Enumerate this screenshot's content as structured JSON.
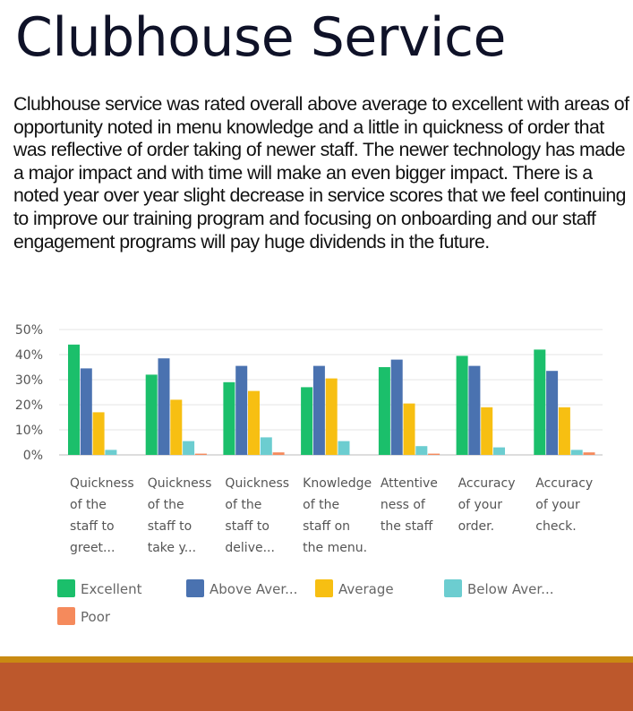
{
  "slide": {
    "title": "Clubhouse Service",
    "body": "Clubhouse service was rated overall above average to excellent with areas of opportunity noted in menu knowledge and a little in quickness of order that was reflective of order taking of newer staff.  The newer technology has made a major impact and with time will make an even bigger impact.  There is a noted year over year slight decrease in service scores that we feel continuing to improve our training program and focusing on onboarding and our staff engagement programs will pay huge dividends in the future."
  },
  "chart_data": {
    "type": "bar",
    "title": "",
    "xlabel": "",
    "ylabel": "",
    "ylim": [
      0,
      50
    ],
    "y_ticks": [
      "0%",
      "10%",
      "20%",
      "30%",
      "40%",
      "50%"
    ],
    "categories": [
      [
        "Quickness",
        "of the",
        "staff to",
        "greet..."
      ],
      [
        "Quickness",
        "of the",
        "staff to",
        "take y..."
      ],
      [
        "Quickness",
        "of the",
        "staff to",
        "delive..."
      ],
      [
        "Knowledge",
        "of the",
        "staff on",
        "the menu."
      ],
      [
        "Attentive",
        "ness of",
        "the staff"
      ],
      [
        "Accuracy",
        "of your",
        "order."
      ],
      [
        "Accuracy",
        "of your",
        "check."
      ]
    ],
    "series": [
      {
        "name": "Excellent",
        "legend_label": "Excellent",
        "color": "#1bbf6b",
        "values": [
          44,
          32,
          29,
          27,
          35,
          39.5,
          42
        ]
      },
      {
        "name": "Above Average",
        "legend_label": "Above Aver...",
        "color": "#4a72b0",
        "values": [
          34.5,
          38.5,
          35.5,
          35.5,
          38,
          35.5,
          33.5
        ]
      },
      {
        "name": "Average",
        "legend_label": "Average",
        "color": "#f7bf12",
        "values": [
          17,
          22,
          25.5,
          30.5,
          20.5,
          19,
          19
        ]
      },
      {
        "name": "Below Average",
        "legend_label": "Below Aver...",
        "color": "#6ccdd0",
        "values": [
          2,
          5.5,
          7,
          5.5,
          3.5,
          3,
          2
        ]
      },
      {
        "name": "Poor",
        "legend_label": "Poor",
        "color": "#f58a5c",
        "values": [
          0,
          0.5,
          1,
          0,
          0.5,
          0,
          1
        ]
      }
    ],
    "legend_position": "bottom",
    "grid": true
  }
}
